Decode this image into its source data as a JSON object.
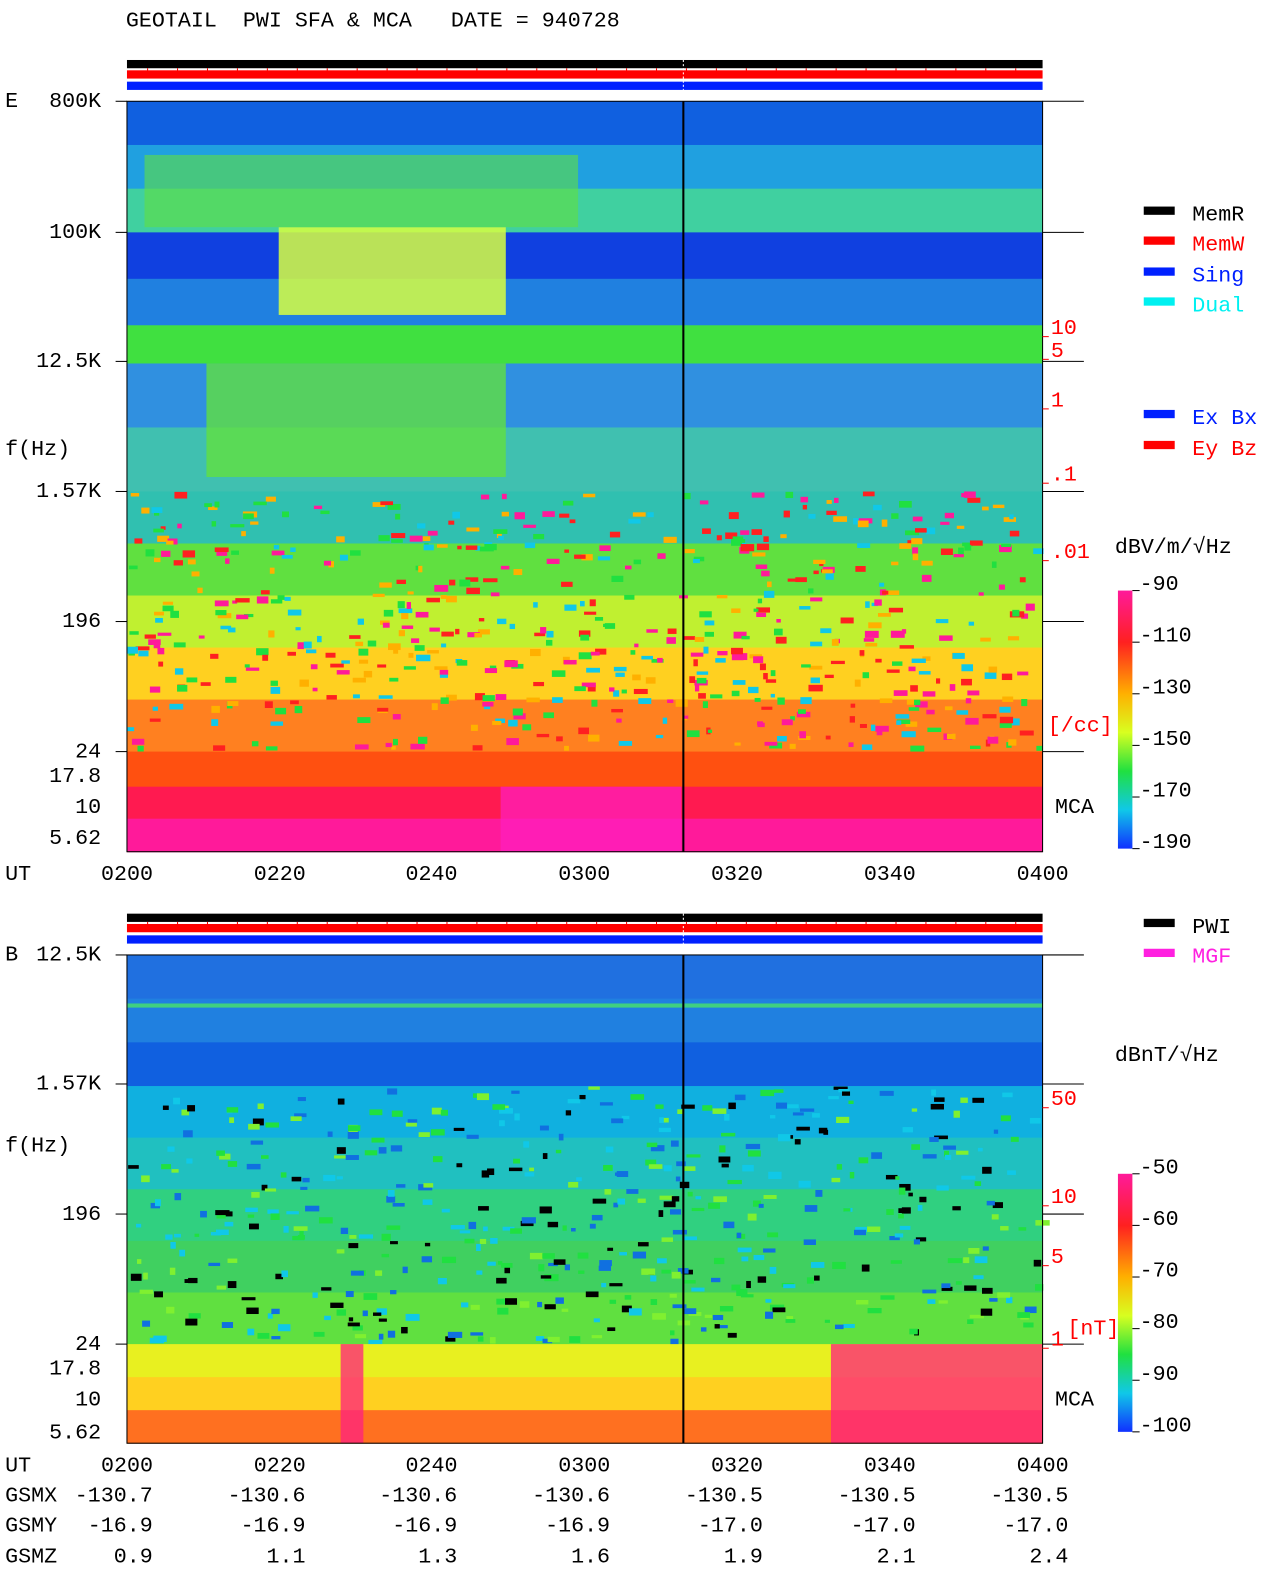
{
  "header": {
    "title": "GEOTAIL  PWI SFA & MCA   DATE = 940728"
  },
  "x_axis": {
    "label": "UT",
    "ticks": [
      "0200",
      "0220",
      "0240",
      "0300",
      "0320",
      "0340",
      "0400"
    ]
  },
  "mem_legend": [
    "MemR",
    "MemW",
    "Sing",
    "Dual"
  ],
  "source_legend": [
    "PWI",
    "MGF"
  ],
  "panels": [
    {
      "label": "E",
      "y_axis": "f(Hz)",
      "y_ticks": [
        "800K",
        "100K",
        "12.5K",
        "1.57K",
        "196",
        "24",
        "17.8",
        "10",
        "5.62"
      ],
      "density_ticks": [
        "10",
        "5",
        "1",
        ".1",
        ".01"
      ],
      "density_unit": "[/cc]",
      "mca": "MCA",
      "component_legend": [
        "Ex Bx",
        "Ey Bz"
      ],
      "colorbar": {
        "unit": "dBV/m/√Hz",
        "ticks": [
          "-90",
          "-110",
          "-130",
          "-150",
          "-170",
          "-190"
        ]
      }
    },
    {
      "label": "B",
      "y_axis": "f(Hz)",
      "y_ticks": [
        "12.5K",
        "1.57K",
        "196",
        "24",
        "17.8",
        "10",
        "5.62"
      ],
      "density_ticks": [
        "50",
        "10",
        "5",
        "1"
      ],
      "density_unit": "[nT]",
      "mca": "MCA",
      "colorbar": {
        "unit": "dBnT/√Hz",
        "ticks": [
          "-50",
          "-60",
          "-70",
          "-80",
          "-90",
          "-100"
        ]
      }
    }
  ],
  "orbit": [
    {
      "label": "GSMX",
      "values": [
        "-130.7",
        "-130.6",
        "-130.6",
        "-130.6",
        "-130.5",
        "-130.5",
        "-130.5"
      ]
    },
    {
      "label": "GSMY",
      "values": [
        "-16.9",
        "-16.9",
        "-16.9",
        "-16.9",
        "-17.0",
        "-17.0",
        "-17.0"
      ]
    },
    {
      "label": "GSMZ",
      "values": [
        "0.9",
        "1.1",
        "1.3",
        "1.6",
        "1.9",
        "2.1",
        "2.4"
      ]
    }
  ]
}
